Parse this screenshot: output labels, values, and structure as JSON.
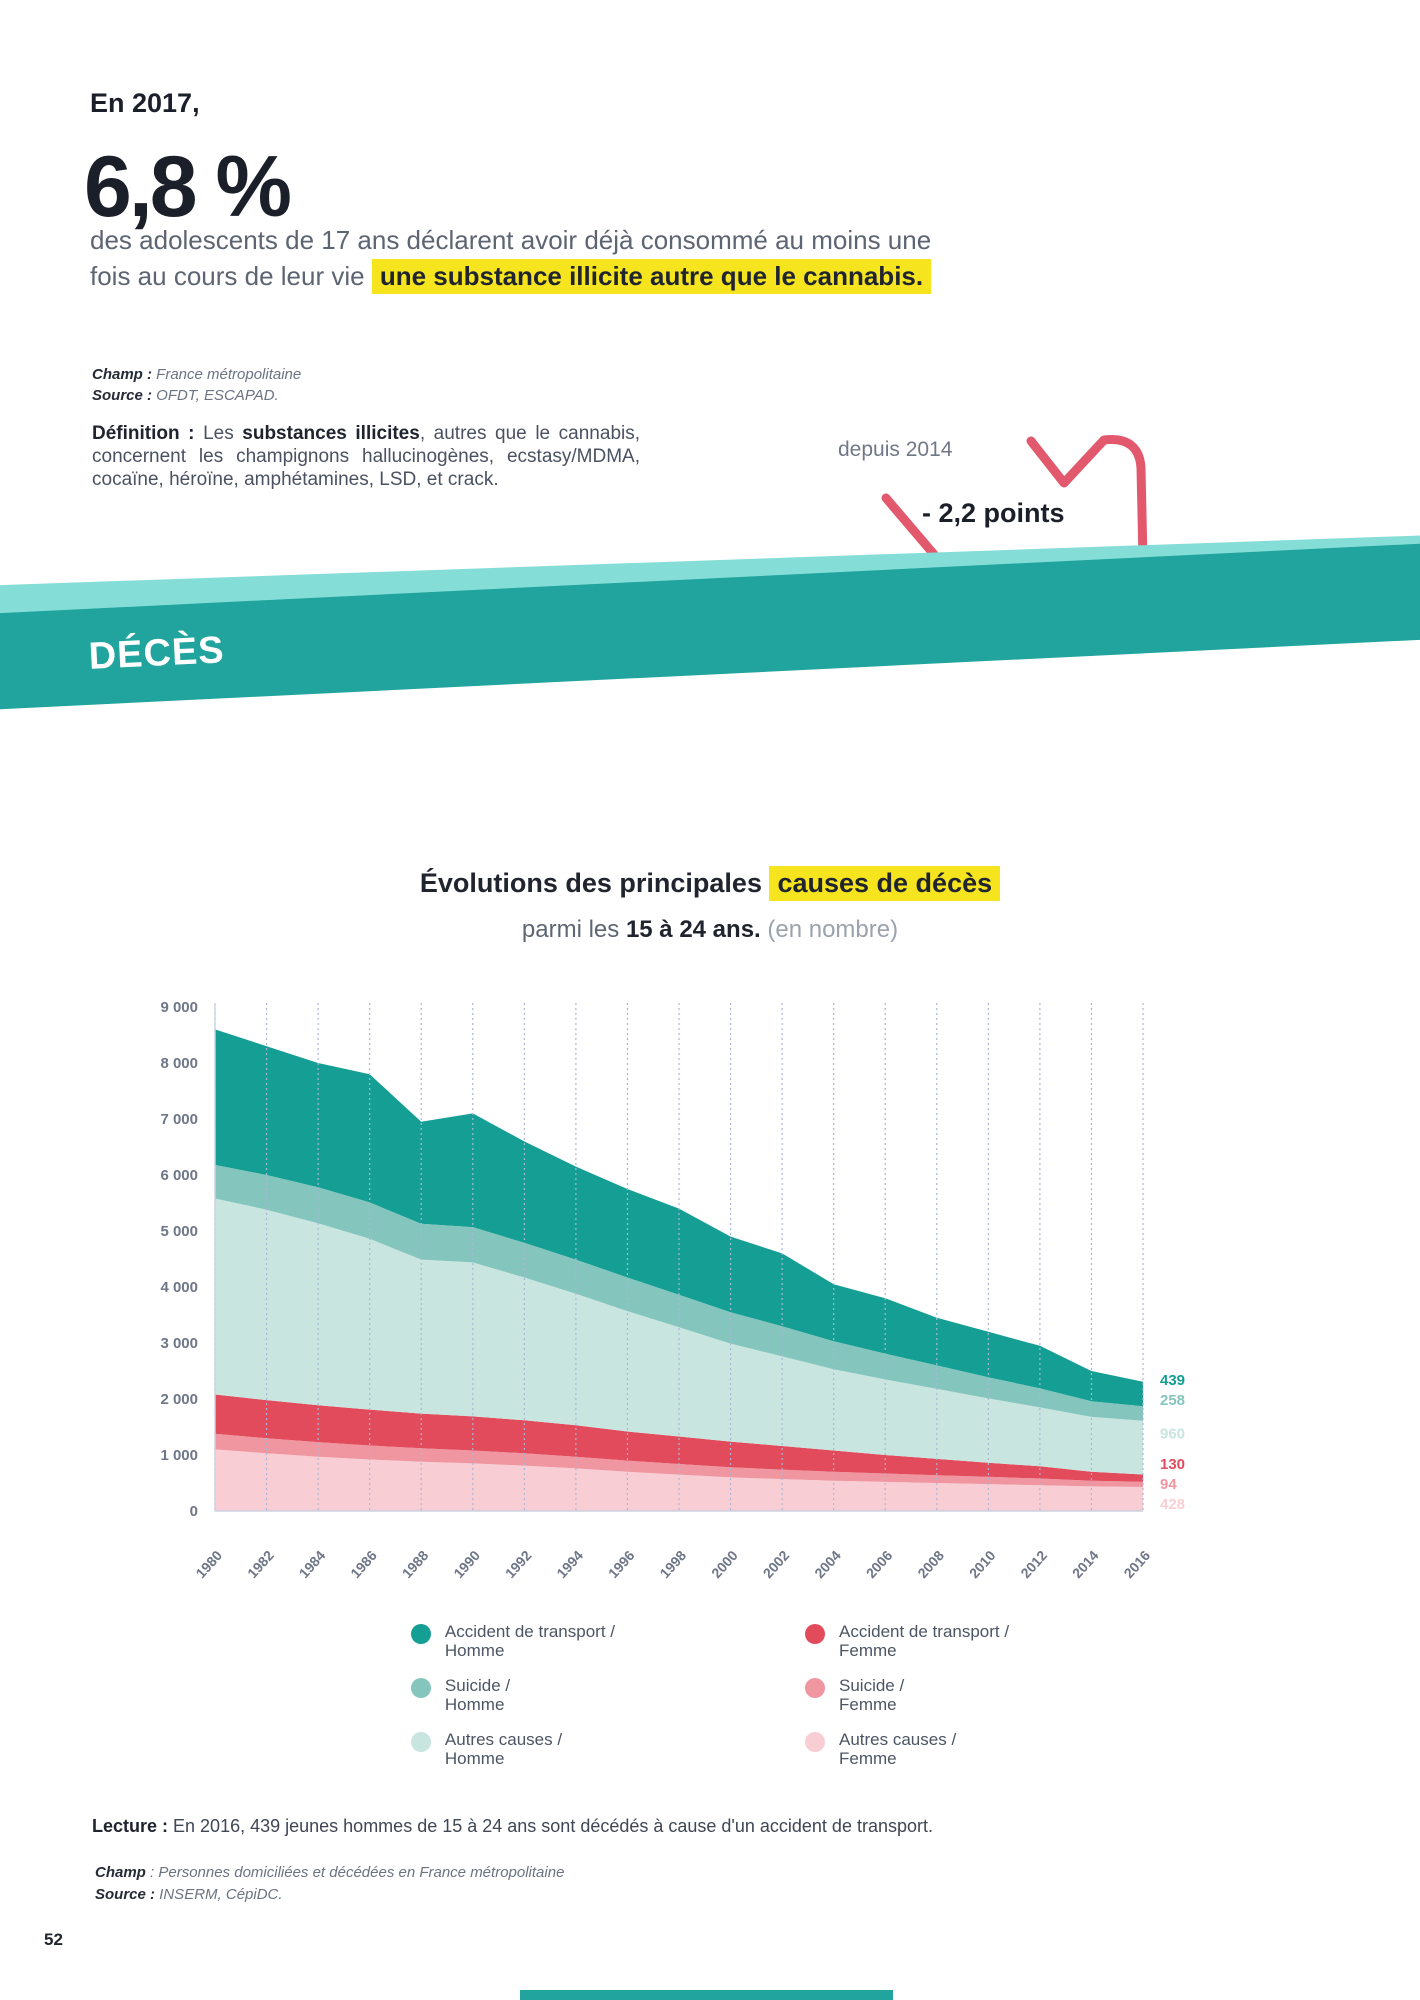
{
  "page": {
    "number": "52"
  },
  "stat_section": {
    "intro": "En 2017,",
    "big_number": "6,8 %",
    "line1": "des adolescents de 17 ans déclarent avoir déjà consommé au moins une",
    "line2_prefix": "fois au cours de leur vie ",
    "line2_highlight": "une substance illicite autre que le cannabis.",
    "champ_label": "Champ :",
    "champ_value": " France métropolitaine",
    "source_label": "Source :",
    "source_value": " OFDT, ESCAPAD.",
    "definition_label": "Définition :",
    "definition_pre": " Les ",
    "definition_bold": "substances illicites",
    "definition_post": ", autres que le cannabis, concernent les champignons hallucinogènes, ecstasy/MDMA, cocaïne, héroïne, amphétamines, LSD, et crack.",
    "since_label": "depuis 2014",
    "delta_value": "- 2,2 points",
    "arrow_color": "#e2596e"
  },
  "banner": {
    "title": "DÉCÈS",
    "color": "#20a49d",
    "edge_color": "#84ded7"
  },
  "chart_section": {
    "title_part1": "Évolutions des principales ",
    "title_highlight": "causes de décès",
    "subtitle_pre": "parmi les ",
    "subtitle_bold": "15 à 24 ans.",
    "subtitle_light": " (en nombre)"
  },
  "chart_data": {
    "type": "area",
    "stacked": true,
    "title": "Évolutions des principales causes de décès parmi les 15 à 24 ans (en nombre)",
    "xlabel": "",
    "ylabel": "",
    "ylim": [
      0,
      9000
    ],
    "grid": "vertical-dashed",
    "legend_position": "bottom",
    "x": [
      "1980",
      "1982",
      "1984",
      "1986",
      "1988",
      "1990",
      "1992",
      "1994",
      "1996",
      "1998",
      "2000",
      "2002",
      "2004",
      "2006",
      "2008",
      "2010",
      "2012",
      "2014",
      "2016"
    ],
    "yticks": [
      {
        "v": 9000,
        "label": "9 000"
      },
      {
        "v": 8000,
        "label": "8 000"
      },
      {
        "v": 7000,
        "label": "7 000"
      },
      {
        "v": 6000,
        "label": "6 000"
      },
      {
        "v": 5000,
        "label": "5 000"
      },
      {
        "v": 4000,
        "label": "4 000"
      },
      {
        "v": 3000,
        "label": "3 000"
      },
      {
        "v": 2000,
        "label": "2 000"
      },
      {
        "v": 1000,
        "label": "1 000"
      },
      {
        "v": 0,
        "label": "0"
      }
    ],
    "series": [
      {
        "key": "autres-causes-femme",
        "name": "Autres causes / Femme",
        "color": "#f8ced4",
        "end_label": "428",
        "end_label_bold": false,
        "values": [
          1100,
          1030,
          970,
          920,
          880,
          850,
          810,
          760,
          700,
          650,
          600,
          570,
          540,
          520,
          500,
          480,
          460,
          440,
          428
        ]
      },
      {
        "key": "suicide-femme",
        "name": "Suicide / Femme",
        "color": "#ef96a0",
        "end_label": "94",
        "end_label_bold": false,
        "values": [
          280,
          270,
          260,
          250,
          240,
          230,
          220,
          210,
          200,
          190,
          180,
          170,
          160,
          150,
          140,
          130,
          120,
          100,
          94
        ]
      },
      {
        "key": "accident-transport-femme",
        "name": "Accident de transport / Femme",
        "color": "#e24b5c",
        "end_label": "130",
        "end_label_bold": true,
        "values": [
          700,
          680,
          660,
          640,
          620,
          610,
          590,
          560,
          520,
          490,
          460,
          420,
          380,
          330,
          290,
          250,
          220,
          160,
          130
        ]
      },
      {
        "key": "autres-causes-homme",
        "name": "Autres causes / Homme",
        "color": "#c8e5df",
        "end_label": "960",
        "end_label_bold": false,
        "values": [
          3500,
          3400,
          3250,
          3050,
          2750,
          2750,
          2550,
          2350,
          2150,
          1950,
          1750,
          1600,
          1450,
          1350,
          1250,
          1150,
          1050,
          980,
          960
        ]
      },
      {
        "key": "suicide-homme",
        "name": "Suicide / Homme",
        "color": "#84c6bd",
        "end_label": "258",
        "end_label_bold": false,
        "values": [
          600,
          620,
          640,
          650,
          640,
          630,
          620,
          610,
          600,
          580,
          560,
          540,
          500,
          460,
          420,
          380,
          340,
          280,
          258
        ]
      },
      {
        "key": "accident-transport-homme",
        "name": "Accident de transport / Homme",
        "color": "#159e94",
        "end_label": "439",
        "end_label_bold": true,
        "values": [
          2420,
          2300,
          2220,
          2290,
          1820,
          2030,
          1810,
          1660,
          1580,
          1540,
          1350,
          1300,
          1020,
          990,
          850,
          810,
          760,
          540,
          439
        ]
      }
    ]
  },
  "legend": {
    "columns": [
      {
        "items": [
          {
            "key": "accident-transport-homme",
            "color": "#159e94",
            "line1": "Accident de transport /",
            "line2": "Homme"
          },
          {
            "key": "suicide-homme",
            "color": "#84c6bd",
            "line1": "Suicide /",
            "line2": "Homme"
          },
          {
            "key": "autres-causes-homme",
            "color": "#c8e5df",
            "line1": "Autres causes /",
            "line2": "Homme"
          }
        ]
      },
      {
        "items": [
          {
            "key": "accident-transport-femme",
            "color": "#e24b5c",
            "line1": "Accident de transport /",
            "line2": "Femme"
          },
          {
            "key": "suicide-femme",
            "color": "#ef96a0",
            "line1": "Suicide /",
            "line2": "Femme"
          },
          {
            "key": "autres-causes-femme",
            "color": "#f8ced4",
            "line1": "Autres causes /",
            "line2": "Femme"
          }
        ]
      }
    ]
  },
  "lecture": {
    "label": "Lecture :",
    "text": " En 2016, 439 jeunes hommes de 15 à 24 ans sont décédés à cause d'un accident de transport."
  },
  "footer_notes": {
    "champ_label": "Champ",
    "champ_value": " : Personnes domiciliées et décédées en France métropolitaine",
    "source_label": "Source :",
    "source_value": " INSERM, CépiDC."
  }
}
